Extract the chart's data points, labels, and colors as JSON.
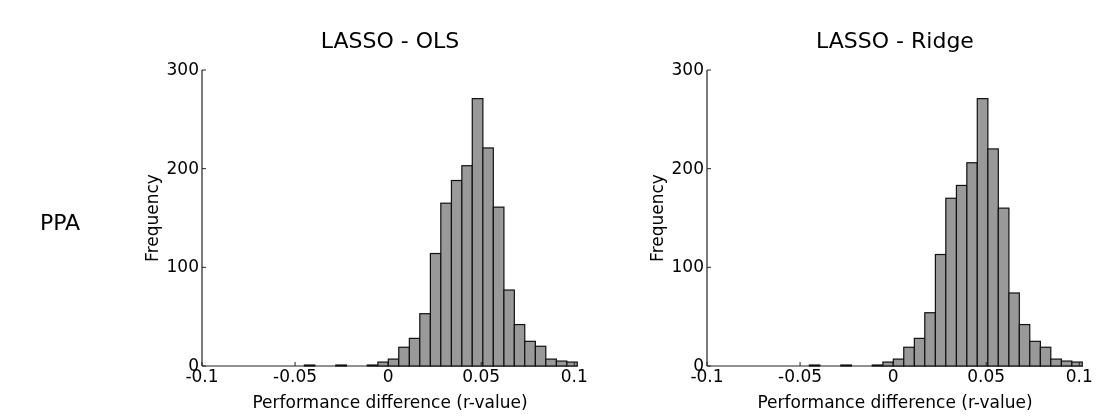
{
  "chart_data": [
    {
      "type": "histogram",
      "title": "LASSO - OLS",
      "xlabel": "Performance difference (r-value)",
      "ylabel": "Frequency",
      "annotations": [
        "PPA"
      ],
      "color": "#999999",
      "bins": [
        -0.045,
        -0.0394,
        -0.0337,
        -0.0281,
        -0.0224,
        -0.0168,
        -0.0112,
        -0.0055,
        0.0001,
        0.0057,
        0.0114,
        0.017,
        0.0227,
        0.0283,
        0.034,
        0.0396,
        0.0452,
        0.0509,
        0.0565,
        0.0622,
        0.0678,
        0.0734,
        0.0791,
        0.0847,
        0.0904,
        0.096,
        0.1016
      ],
      "values": [
        1,
        0,
        0,
        1,
        0,
        0,
        1,
        4,
        7,
        19,
        28,
        53,
        114,
        165,
        188,
        203,
        271,
        221,
        161,
        77,
        42,
        25,
        20,
        7,
        5,
        4
      ],
      "xlim": [
        -0.1,
        0.102
      ],
      "xticks": [
        -0.1,
        -0.05,
        0,
        0.05,
        0.1
      ],
      "ylim": [
        0,
        300
      ],
      "yticks": [
        0,
        100,
        200,
        300
      ],
      "grid": false
    },
    {
      "type": "histogram",
      "title": "LASSO - Ridge",
      "xlabel": "Performance difference (r-value)",
      "ylabel": "Frequency",
      "color": "#999999",
      "bins": [
        -0.045,
        -0.0394,
        -0.0337,
        -0.0281,
        -0.0224,
        -0.0168,
        -0.0112,
        -0.0055,
        0.0001,
        0.0057,
        0.0114,
        0.017,
        0.0227,
        0.0283,
        0.034,
        0.0396,
        0.0452,
        0.0509,
        0.0565,
        0.0622,
        0.0678,
        0.0734,
        0.0791,
        0.0847,
        0.0904,
        0.096,
        0.1016
      ],
      "values": [
        1,
        0,
        0,
        1,
        0,
        0,
        1,
        4,
        7,
        19,
        28,
        54,
        113,
        170,
        183,
        206,
        271,
        220,
        160,
        74,
        42,
        25,
        19,
        7,
        5,
        4
      ],
      "xlim": [
        -0.1,
        0.102
      ],
      "xticks": [
        -0.1,
        -0.05,
        0,
        0.05,
        0.1
      ],
      "ylim": [
        0,
        300
      ],
      "yticks": [
        0,
        100,
        200,
        300
      ],
      "grid": false
    }
  ]
}
